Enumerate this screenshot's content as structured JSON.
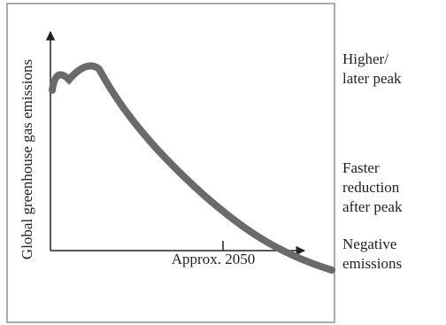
{
  "y_axis_label": "Global greenhouse gas emissions",
  "x_axis_label": "Approx. 2050",
  "annotations": [
    {
      "lines": [
        "Higher/",
        "later peak"
      ]
    },
    {
      "lines": [
        "Faster",
        "reduction",
        "after peak"
      ]
    },
    {
      "lines": [
        "Negative",
        "emissions"
      ]
    }
  ]
}
